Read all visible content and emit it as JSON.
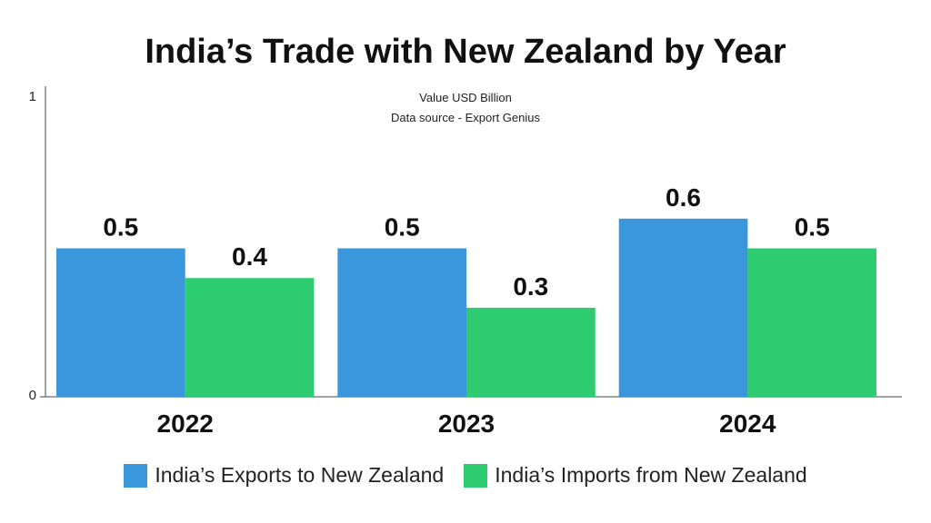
{
  "chart_data": {
    "type": "bar",
    "title": "India’s Trade with New Zealand by Year",
    "subtitle_lines": [
      "Value USD Billion",
      "Data source - Export Genius"
    ],
    "categories": [
      "2022",
      "2023",
      "2024"
    ],
    "series": [
      {
        "name": "India’s Exports to New Zealand",
        "color": "#3b97dc",
        "values": [
          0.5,
          0.5,
          0.6
        ],
        "labels": [
          "0.5",
          "0.5",
          "0.6"
        ]
      },
      {
        "name": "India’s Imports from New Zealand",
        "color": "#2ecc71",
        "values": [
          0.4,
          0.3,
          0.5
        ],
        "labels": [
          "0.4",
          "0.3",
          "0.5"
        ]
      }
    ],
    "ylim": [
      0,
      1
    ],
    "yticks": [
      "0",
      "1"
    ],
    "grid": false,
    "legend_position": "bottom"
  }
}
